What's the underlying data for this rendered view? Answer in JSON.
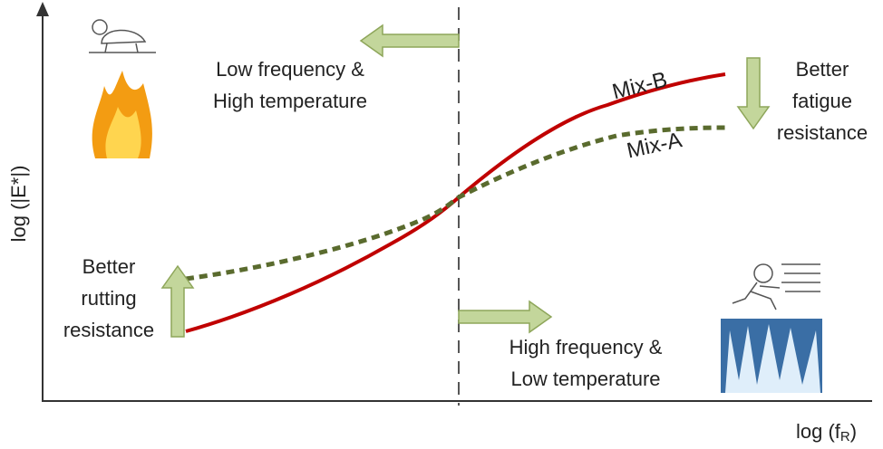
{
  "axes": {
    "y_label": "log (|E*|)",
    "x_label": {
      "text": "log (f",
      "subscript": "R",
      "close": ")"
    }
  },
  "regions": {
    "left": {
      "lines": [
        "Low frequency &",
        "High temperature"
      ]
    },
    "right": {
      "lines": [
        "High frequency &",
        "Low temperature"
      ]
    }
  },
  "notes": {
    "rutting": {
      "lines": [
        "Better",
        "rutting",
        "resistance"
      ]
    },
    "fatigue": {
      "lines": [
        "Better",
        "fatigue",
        "resistance"
      ]
    }
  },
  "curves": {
    "mix_b": "Mix-B",
    "mix_a": "Mix-A"
  }
}
